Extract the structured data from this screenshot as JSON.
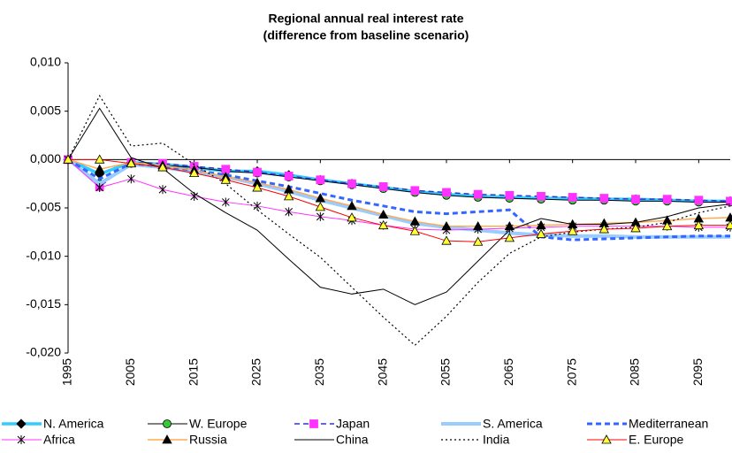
{
  "chart_data": {
    "type": "line",
    "title": "Regional annual real interest rate",
    "subtitle": "(difference from baseline scenario)",
    "x": [
      1995,
      2000,
      2005,
      2010,
      2015,
      2020,
      2025,
      2030,
      2035,
      2040,
      2045,
      2050,
      2055,
      2060,
      2065,
      2070,
      2075,
      2080,
      2085,
      2090,
      2095,
      2100
    ],
    "xlim": [
      1995,
      2100
    ],
    "xticks": [
      1995,
      2005,
      2015,
      2025,
      2035,
      2045,
      2055,
      2065,
      2075,
      2085,
      2095
    ],
    "ylim": [
      -0.02,
      0.01
    ],
    "yticks": [
      {
        "value": -0.02,
        "label": "-0,020"
      },
      {
        "value": -0.015,
        "label": "-0,015"
      },
      {
        "value": -0.01,
        "label": "-0,010"
      },
      {
        "value": -0.005,
        "label": "-0,005"
      },
      {
        "value": 0,
        "label": "0,000"
      },
      {
        "value": 0.005,
        "label": "0,005"
      },
      {
        "value": 0.01,
        "label": "0,010"
      }
    ],
    "grid": false,
    "legend": "bottom",
    "series": [
      {
        "name": "N. America",
        "color": "#33ccff",
        "line_width": 3.5,
        "dash": "solid",
        "marker": "diamond",
        "marker_color": "#000000",
        "values": [
          0,
          -0.0015,
          -0.0003,
          -0.0005,
          -0.0008,
          -0.0012,
          -0.0012,
          -0.0016,
          -0.0021,
          -0.0025,
          -0.0029,
          -0.0033,
          -0.0036,
          -0.0038,
          -0.0039,
          -0.004,
          -0.004,
          -0.0041,
          -0.0041,
          -0.0042,
          -0.0043,
          -0.0043
        ]
      },
      {
        "name": "W. Europe",
        "color": "#000000",
        "line_width": 1,
        "dash": "solid",
        "marker": "circle",
        "marker_color": "#33cc33",
        "values": [
          0,
          -0.0025,
          -0.0004,
          -0.0006,
          -0.0008,
          -0.0012,
          -0.0014,
          -0.0018,
          -0.0022,
          -0.0026,
          -0.003,
          -0.0034,
          -0.0037,
          -0.0039,
          -0.004,
          -0.0041,
          -0.0042,
          -0.0042,
          -0.0043,
          -0.0043,
          -0.0044,
          -0.0044
        ]
      },
      {
        "name": "Japan",
        "color": "#3333cc",
        "line_width": 1.5,
        "dash": "dashed",
        "marker": "square",
        "marker_color": "#ff33ff",
        "values": [
          0,
          -0.0028,
          -0.0003,
          -0.0004,
          -0.0007,
          -0.001,
          -0.0013,
          -0.0017,
          -0.0021,
          -0.0025,
          -0.0028,
          -0.0032,
          -0.0034,
          -0.0036,
          -0.0037,
          -0.0038,
          -0.0039,
          -0.004,
          -0.0041,
          -0.0041,
          -0.0042,
          -0.0043
        ]
      },
      {
        "name": "S. America",
        "color": "#99ccff",
        "line_width": 4,
        "dash": "solid",
        "marker": "none",
        "marker_color": "#99ccff",
        "values": [
          0,
          -0.0025,
          -0.0005,
          -0.0008,
          -0.0013,
          -0.0018,
          -0.0025,
          -0.0033,
          -0.0042,
          -0.005,
          -0.0058,
          -0.0066,
          -0.007,
          -0.0073,
          -0.0076,
          -0.0078,
          -0.0079,
          -0.0079,
          -0.008,
          -0.008,
          -0.008,
          -0.008
        ]
      },
      {
        "name": "Mediterranean",
        "color": "#3366ff",
        "line_width": 3,
        "dash": "dashed",
        "marker": "none",
        "marker_color": "#3366ff",
        "values": [
          0,
          -0.002,
          -0.0004,
          -0.0007,
          -0.0011,
          -0.0016,
          -0.0022,
          -0.0028,
          -0.0035,
          -0.0042,
          -0.0048,
          -0.0054,
          -0.0056,
          -0.0054,
          -0.0052,
          -0.008,
          -0.0083,
          -0.0082,
          -0.0081,
          -0.008,
          -0.0079,
          -0.0079
        ]
      },
      {
        "name": "Africa",
        "color": "#ff33ff",
        "line_width": 1,
        "dash": "solid",
        "marker": "star",
        "marker_color": "#000000",
        "values": [
          0,
          -0.0029,
          -0.002,
          -0.0031,
          -0.0038,
          -0.0044,
          -0.0048,
          -0.0054,
          -0.0059,
          -0.0063,
          -0.0068,
          -0.0072,
          -0.0073,
          -0.0072,
          -0.0071,
          -0.007,
          -0.0069,
          -0.0069,
          -0.0069,
          -0.0069,
          -0.007,
          -0.007
        ]
      },
      {
        "name": "Russia",
        "color": "#ffaa55",
        "line_width": 1.5,
        "dash": "solid",
        "marker": "triangle",
        "marker_color": "#000000",
        "values": [
          0,
          -0.001,
          -0.0003,
          -0.0006,
          -0.0011,
          -0.0018,
          -0.0024,
          -0.0031,
          -0.004,
          -0.0048,
          -0.0057,
          -0.0064,
          -0.0069,
          -0.0069,
          -0.0069,
          -0.0068,
          -0.0067,
          -0.0066,
          -0.0065,
          -0.0063,
          -0.0061,
          -0.006
        ]
      },
      {
        "name": "China",
        "color": "#000000",
        "line_width": 1,
        "dash": "solid",
        "marker": "none",
        "marker_color": "#000000",
        "values": [
          0,
          0.0053,
          0.0002,
          -0.0009,
          -0.0035,
          -0.0055,
          -0.0073,
          -0.0103,
          -0.0132,
          -0.0139,
          -0.0134,
          -0.015,
          -0.0137,
          -0.0105,
          -0.0073,
          -0.0061,
          -0.0067,
          -0.0067,
          -0.0065,
          -0.0059,
          -0.005,
          -0.0046
        ]
      },
      {
        "name": "India",
        "color": "#000000",
        "line_width": 1.2,
        "dash": "dotted",
        "marker": "none",
        "marker_color": "#000000",
        "values": [
          0,
          0.0066,
          0.0014,
          0.0017,
          -0.0005,
          -0.0025,
          -0.0052,
          -0.0077,
          -0.0101,
          -0.0132,
          -0.0163,
          -0.0192,
          -0.0162,
          -0.0127,
          -0.0097,
          -0.008,
          -0.0075,
          -0.0072,
          -0.007,
          -0.0065,
          -0.0055,
          -0.0048
        ]
      },
      {
        "name": "E. Europe",
        "color": "#ff0000",
        "line_width": 1,
        "dash": "solid",
        "marker": "triangle",
        "marker_color": "#ffff33",
        "values": [
          0,
          0,
          -0.0004,
          -0.0008,
          -0.0014,
          -0.0021,
          -0.0029,
          -0.0038,
          -0.0049,
          -0.006,
          -0.0068,
          -0.0074,
          -0.0084,
          -0.0085,
          -0.0081,
          -0.0077,
          -0.0074,
          -0.0072,
          -0.0071,
          -0.0069,
          -0.0068,
          -0.0068
        ]
      }
    ]
  }
}
